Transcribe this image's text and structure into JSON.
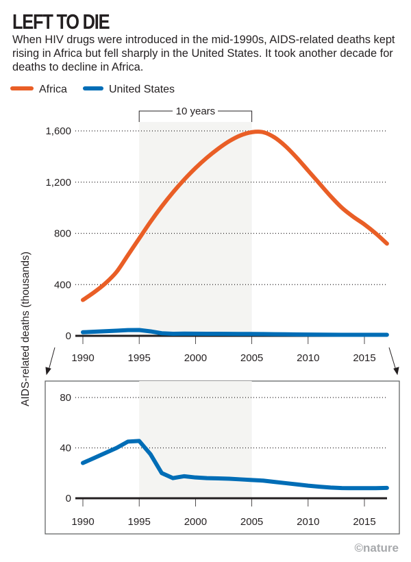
{
  "title": "LEFT TO DIE",
  "subtitle": "When HIV drugs were introduced in the mid-1990s, AIDS-related deaths kept rising in Africa but fell sharply in the United States. It took another decade for deaths to decline in Africa.",
  "credit": "©nature",
  "colors": {
    "africa": "#e95e26",
    "united_states": "#006db6",
    "shade": "#f4f4f2"
  },
  "chart_data": [
    {
      "type": "line",
      "ylabel": "AIDS-related deaths (thousands)",
      "xlim": [
        1990,
        2017
      ],
      "ylim": [
        0,
        1600
      ],
      "yticks": [
        "0",
        "400",
        "800",
        "1,200",
        "1,600"
      ],
      "ytick_values": [
        0,
        400,
        800,
        1200,
        1600
      ],
      "xticks": [
        1990,
        1995,
        2000,
        2005,
        2010,
        2015
      ],
      "grid": true,
      "legend": "top-left",
      "annotation": {
        "label": "10 years",
        "from": 1995,
        "to": 2005
      },
      "x": [
        1990,
        1991,
        1992,
        1993,
        1994,
        1995,
        1996,
        1997,
        1998,
        1999,
        2000,
        2001,
        2002,
        2003,
        2004,
        2005,
        2006,
        2007,
        2008,
        2009,
        2010,
        2011,
        2012,
        2013,
        2014,
        2015,
        2016,
        2017
      ],
      "series": [
        {
          "name": "Africa",
          "values": [
            280,
            340,
            410,
            500,
            630,
            760,
            890,
            1010,
            1120,
            1220,
            1310,
            1390,
            1460,
            1520,
            1565,
            1590,
            1590,
            1550,
            1480,
            1390,
            1290,
            1190,
            1090,
            1000,
            930,
            870,
            800,
            720
          ]
        },
        {
          "name": "United States",
          "values": [
            28,
            32,
            36,
            40,
            45,
            45.5,
            35,
            20,
            16,
            17.5,
            16.5,
            16,
            15.8,
            15.5,
            15,
            14.5,
            14,
            13,
            12,
            11,
            10,
            9.2,
            8.5,
            8.1,
            8,
            8,
            8,
            8.2
          ]
        }
      ]
    },
    {
      "type": "line",
      "xlim": [
        1990,
        2017
      ],
      "ylim": [
        0,
        80
      ],
      "yticks": [
        "0",
        "40",
        "80"
      ],
      "ytick_values": [
        0,
        40,
        80
      ],
      "xticks": [
        1990,
        1995,
        2000,
        2005,
        2010,
        2015
      ],
      "grid": true,
      "shaded_range": [
        1995,
        2005
      ],
      "x": [
        1990,
        1991,
        1992,
        1993,
        1994,
        1995,
        1996,
        1997,
        1998,
        1999,
        2000,
        2001,
        2002,
        2003,
        2004,
        2005,
        2006,
        2007,
        2008,
        2009,
        2010,
        2011,
        2012,
        2013,
        2014,
        2015,
        2016,
        2017
      ],
      "series": [
        {
          "name": "United States",
          "values": [
            28,
            32,
            36,
            40,
            45,
            45.5,
            35,
            20,
            16,
            17.5,
            16.5,
            16,
            15.8,
            15.5,
            15,
            14.5,
            14,
            13,
            12,
            11,
            10,
            9.2,
            8.5,
            8.1,
            8,
            8,
            8,
            8.2
          ]
        }
      ]
    }
  ]
}
